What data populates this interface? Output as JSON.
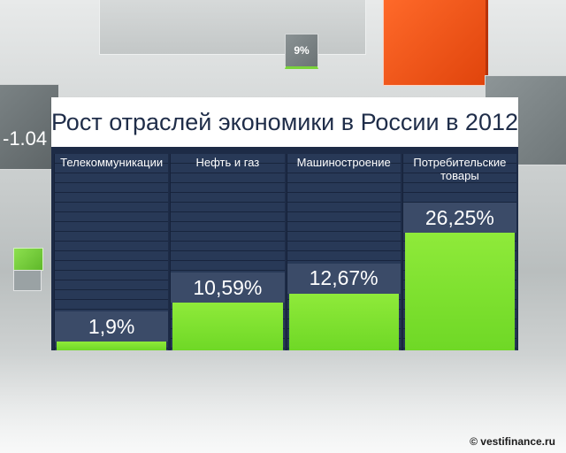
{
  "background": {
    "left_box_text": "-1.04",
    "small_box_text": "9%"
  },
  "chart_data": {
    "type": "bar",
    "title": "Рост отраслей экономики в России в 2012",
    "categories": [
      "Телекоммуникации",
      "Нефть и газ",
      "Машиностроение",
      "Потребительские товары"
    ],
    "values": [
      1.9,
      10.59,
      12.67,
      26.25
    ],
    "value_labels": [
      "1,9%",
      "10,59%",
      "12,67%",
      "26,25%"
    ],
    "ylim": [
      0,
      36
    ],
    "xlabel": "",
    "ylabel": "",
    "grid": true,
    "bar_color": "#6fd826"
  },
  "watermark": "© vestifinance.ru"
}
